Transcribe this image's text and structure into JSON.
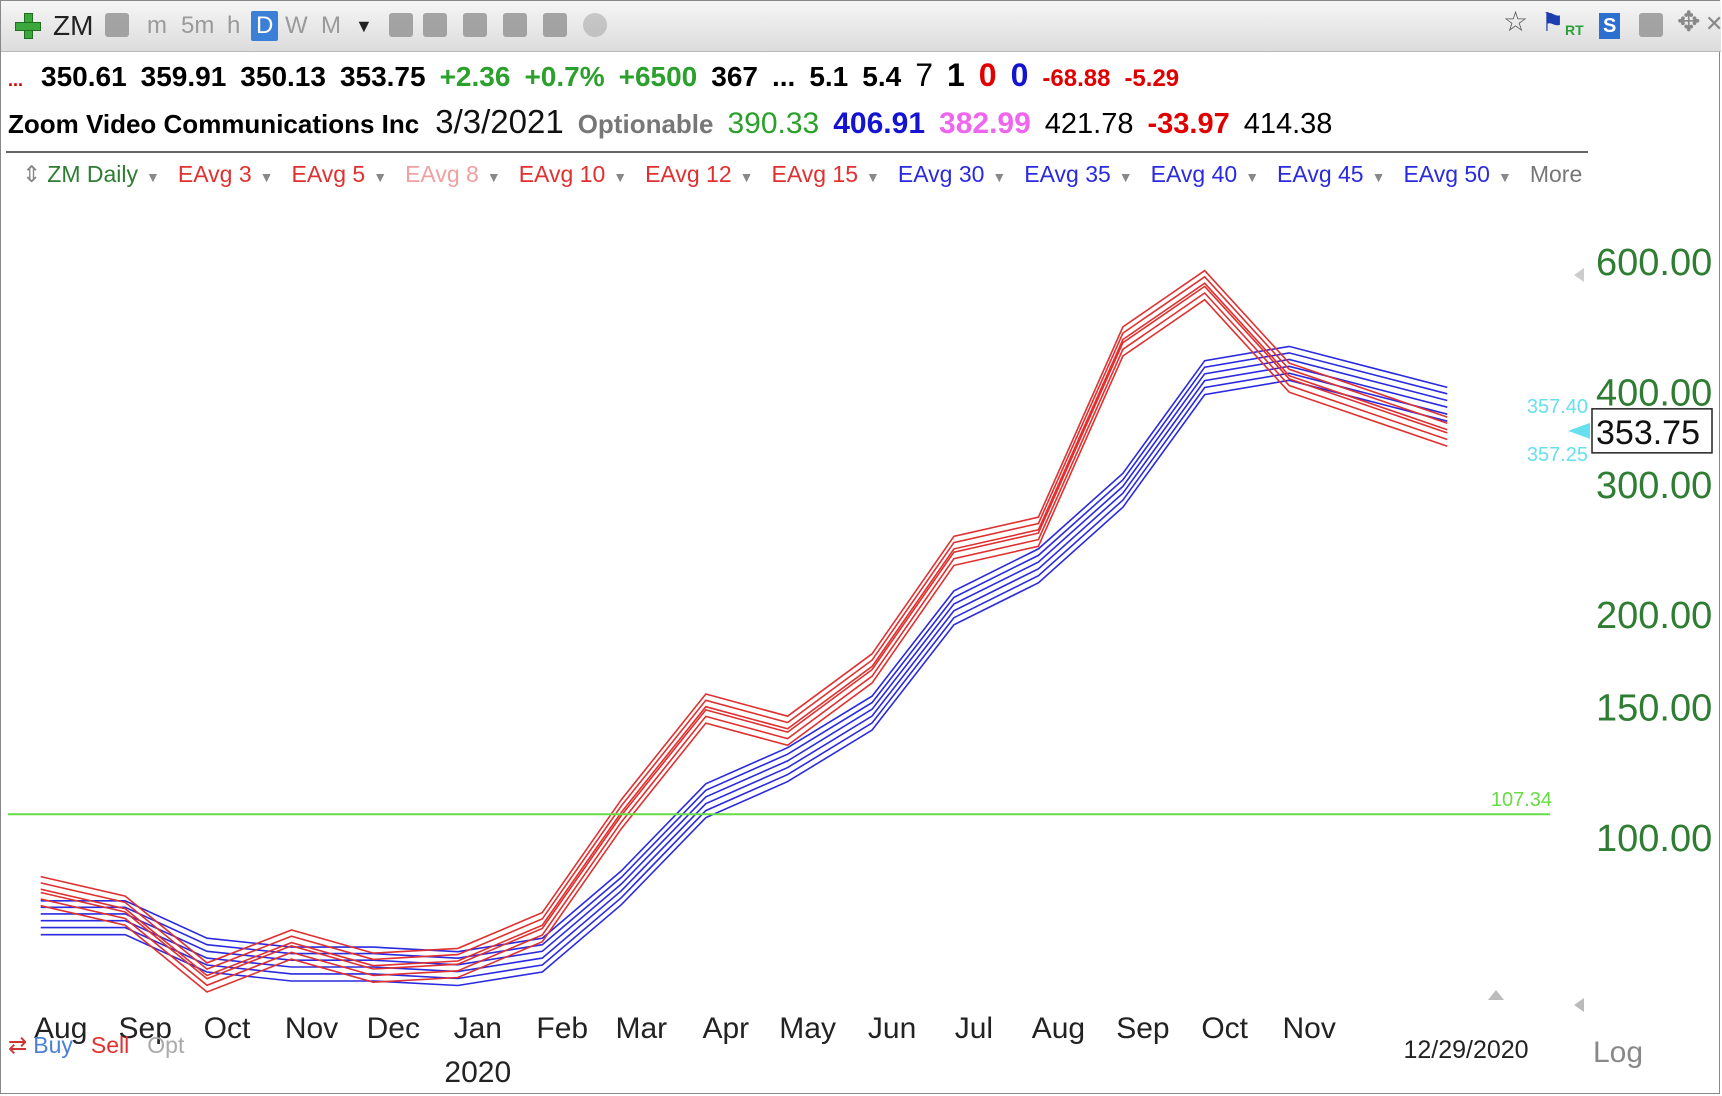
{
  "toolbar": {
    "symbol": "ZM",
    "timeframes": [
      "m",
      "5m",
      "h",
      "D",
      "W",
      "M"
    ],
    "active_timeframe": "D",
    "right_badges": [
      "RT",
      "S"
    ]
  },
  "quote": {
    "prefix": "...",
    "open": "350.61",
    "high": "359.91",
    "low": "350.13",
    "close": "353.75",
    "change": "+2.36",
    "change_pct": "+0.7%",
    "volume_change": "+6500",
    "volume": "367",
    "ellipsis": "...",
    "v1": "5.1",
    "v2": "5.4",
    "n1": "7",
    "n2": "1",
    "n3": "0",
    "n4": "0",
    "neg1": "-68.88",
    "neg2": "-5.29"
  },
  "company": {
    "name": "Zoom Video Communications Inc",
    "date": "3/3/2021",
    "optionable": "Optionable",
    "p1": "390.33",
    "p2": "406.91",
    "p3": "382.99",
    "p4": "421.78",
    "p5": "-33.97",
    "p6": "414.38"
  },
  "indicators": {
    "series_name": "ZM Daily",
    "items": [
      "EAvg 3",
      "EAvg 5",
      "EAvg 8",
      "EAvg 10",
      "EAvg 12",
      "EAvg 15",
      "EAvg 30",
      "EAvg 35",
      "EAvg 40",
      "EAvg 45",
      "EAvg 50"
    ],
    "more": "More"
  },
  "colors": {
    "short_ma": "#e03030",
    "long_ma": "#2a2ae0",
    "price_axis": "#2e7d32",
    "green_line": "#66dd44",
    "cyan": "#66e0ee"
  },
  "bottom": {
    "buy": "Buy",
    "sell": "Sell",
    "opt": "Opt",
    "year_label": "2020",
    "date": "12/29/2020",
    "scale": "Log"
  },
  "chart_data": {
    "type": "line",
    "scale": "log",
    "y_ticks": [
      "600.00",
      "400.00",
      "300.00",
      "200.00",
      "150.00",
      "100.00"
    ],
    "y_tick_values": [
      600,
      400,
      300,
      200,
      150,
      100
    ],
    "x_ticks": [
      "Aug",
      "Sep",
      "Oct",
      "Nov",
      "Dec",
      "Jan",
      "Feb",
      "Mar",
      "Apr",
      "May",
      "Jun",
      "Jul",
      "Aug",
      "Sep",
      "Oct",
      "Nov"
    ],
    "horizontal_line": {
      "value": 107.34,
      "label": "107.34"
    },
    "last_price": {
      "value": 353.75,
      "label": "353.75"
    },
    "side_labels": [
      "357.40",
      "357.25"
    ],
    "ylim": [
      64,
      700
    ],
    "series": [
      {
        "group": "short",
        "x": [
          "2019-08-01",
          "2019-09-01",
          "2019-10-01",
          "2019-11-01",
          "2019-12-01",
          "2020-01-01",
          "2020-02-01",
          "2020-03-01",
          "2020-04-01",
          "2020-05-01",
          "2020-06-01",
          "2020-07-01",
          "2020-08-01",
          "2020-09-01",
          "2020-10-01",
          "2020-11-01",
          "2020-12-29"
        ],
        "y": [
          85,
          80,
          65,
          72,
          67,
          68,
          76,
          108,
          150,
          140,
          170,
          245,
          260,
          470,
          560,
          420,
          355
        ]
      },
      {
        "group": "long",
        "x": [
          "2019-08-01",
          "2019-09-01",
          "2019-10-01",
          "2019-11-01",
          "2019-12-01",
          "2020-01-01",
          "2020-02-01",
          "2020-03-01",
          "2020-04-01",
          "2020-05-01",
          "2020-06-01",
          "2020-07-01",
          "2020-08-01",
          "2020-09-01",
          "2020-10-01",
          "2020-11-01",
          "2020-12-29"
        ],
        "y": [
          82,
          82,
          73,
          71,
          71,
          70,
          73,
          90,
          118,
          132,
          155,
          215,
          245,
          310,
          440,
          460,
          405
        ]
      }
    ]
  }
}
